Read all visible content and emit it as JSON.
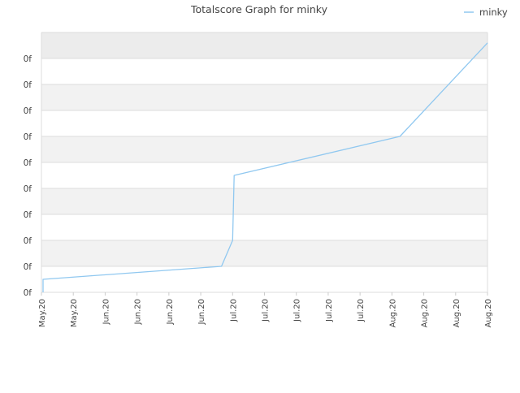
{
  "chart_data": {
    "type": "line",
    "title": "Totalscore Graph for minky",
    "xlabel": "",
    "ylabel": "",
    "legend": {
      "position": "top-right",
      "entries": [
        "minky"
      ]
    },
    "grid": true,
    "y_tick_labels": [
      "0f",
      "0f",
      "0f",
      "0f",
      "0f",
      "0f",
      "0f",
      "0f",
      "0f",
      "0f"
    ],
    "x_tick_labels": [
      "May.20",
      "May.20",
      "Jun.20",
      "Jun.20",
      "Jun.20",
      "Jun.20",
      "Jul.20",
      "Jul.20",
      "Jul.20",
      "Jul.20",
      "Jul.20",
      "Aug.20",
      "Aug.20",
      "Aug.20",
      "Aug.20"
    ],
    "ylim": [
      0,
      10
    ],
    "x_range_index": [
      0,
      14
    ],
    "series": [
      {
        "name": "minky",
        "color": "#90c8f0",
        "points": [
          [
            0.05,
            0.0
          ],
          [
            0.05,
            0.5
          ],
          [
            5.65,
            1.0
          ],
          [
            6.0,
            2.0
          ],
          [
            6.05,
            4.5
          ],
          [
            11.25,
            6.0
          ],
          [
            14.0,
            9.6
          ]
        ]
      }
    ]
  }
}
